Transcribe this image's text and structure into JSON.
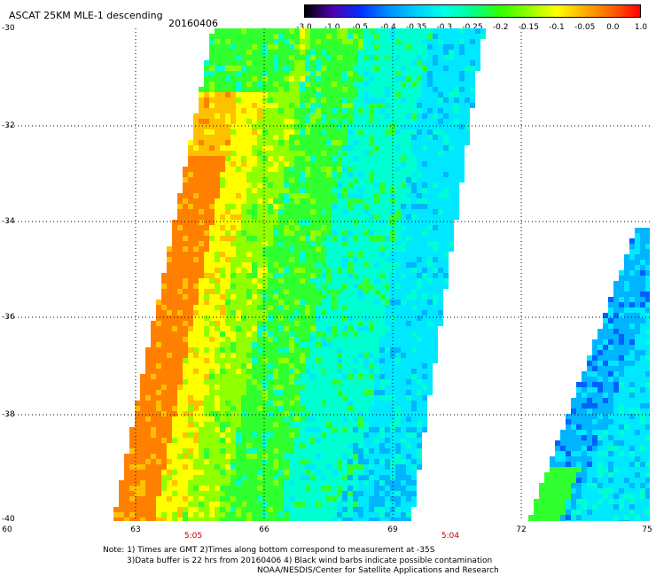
{
  "header": {
    "title": "ASCAT 25KM MLE-1 descending",
    "date": "20160406"
  },
  "colorbar": {
    "labels": [
      "-3.0",
      "-1.0",
      "-0.5",
      "-0.4",
      "-0.35",
      "-0.3",
      "-0.25",
      "-0.2",
      "-0.15",
      "-0.1",
      "-0.05",
      "0.0",
      "1.0"
    ],
    "colors": [
      "#000000",
      "#5000b0",
      "#0030ff",
      "#0090ff",
      "#00d0ff",
      "#00ffe8",
      "#00ff90",
      "#30ff00",
      "#90ff00",
      "#ffff00",
      "#ffb000",
      "#ff6000",
      "#ff0000"
    ]
  },
  "map": {
    "lat_labels": [
      "-30",
      "-32",
      "-34",
      "-36",
      "-38",
      "-40"
    ],
    "lon_labels": [
      "60",
      "63",
      "66",
      "69",
      "72",
      "75"
    ],
    "time_labels": [
      "5:05",
      "5:04"
    ],
    "lat_range": [
      -40,
      -30
    ],
    "lon_range": [
      60,
      75
    ],
    "grid": true
  },
  "footer": {
    "note1": "Note: 1) Times are GMT 2)Times along bottom correspond to measurement at -35S",
    "note2": "3)Data buffer is 22 hrs from 20160406 4) Black wind barbs indicate possible contamination",
    "credit": "NOAA/NESDIS/Center for Satellite Applications and Research"
  }
}
